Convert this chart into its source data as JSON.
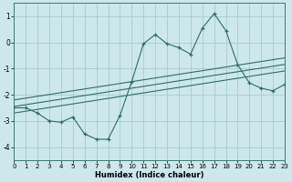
{
  "xlabel": "Humidex (Indice chaleur)",
  "bg_color": "#cce8ea",
  "grid_color": "#aacccc",
  "line_color": "#2d6e65",
  "x_data": [
    0,
    1,
    2,
    3,
    4,
    5,
    6,
    7,
    8,
    9,
    10,
    11,
    12,
    13,
    14,
    15,
    16,
    17,
    18,
    19,
    20,
    21,
    22,
    23
  ],
  "y_main": [
    -2.5,
    -2.5,
    -2.7,
    -3.0,
    -3.05,
    -2.85,
    -3.5,
    -3.7,
    -3.7,
    -2.8,
    -1.5,
    -0.05,
    0.3,
    -0.05,
    -0.2,
    -0.45,
    0.55,
    1.1,
    0.45,
    -0.85,
    -1.55,
    -1.75,
    -1.85,
    -1.6
  ],
  "y_reg": [
    -2.45,
    -2.38,
    -2.31,
    -2.24,
    -2.17,
    -2.1,
    -2.03,
    -1.96,
    -1.89,
    -1.82,
    -1.75,
    -1.68,
    -1.61,
    -1.54,
    -1.47,
    -1.4,
    -1.33,
    -1.26,
    -1.19,
    -1.12,
    -1.05,
    -0.98,
    -0.91,
    -0.84
  ],
  "y_upper": [
    -2.2,
    -2.13,
    -2.06,
    -1.99,
    -1.92,
    -1.85,
    -1.78,
    -1.71,
    -1.64,
    -1.57,
    -1.5,
    -1.43,
    -1.36,
    -1.29,
    -1.22,
    -1.15,
    -1.08,
    -1.01,
    -0.94,
    -0.87,
    -0.8,
    -0.73,
    -0.66,
    -0.59
  ],
  "y_lower": [
    -2.7,
    -2.63,
    -2.56,
    -2.49,
    -2.42,
    -2.35,
    -2.28,
    -2.21,
    -2.14,
    -2.07,
    -2.0,
    -1.93,
    -1.86,
    -1.79,
    -1.72,
    -1.65,
    -1.58,
    -1.51,
    -1.44,
    -1.37,
    -1.3,
    -1.23,
    -1.16,
    -1.09
  ],
  "xlim": [
    0,
    23
  ],
  "ylim": [
    -4.5,
    1.5
  ],
  "yticks": [
    1,
    0,
    -1,
    -2,
    -3,
    -4
  ],
  "xticks": [
    0,
    1,
    2,
    3,
    4,
    5,
    6,
    7,
    8,
    9,
    10,
    11,
    12,
    13,
    14,
    15,
    16,
    17,
    18,
    19,
    20,
    21,
    22,
    23
  ]
}
